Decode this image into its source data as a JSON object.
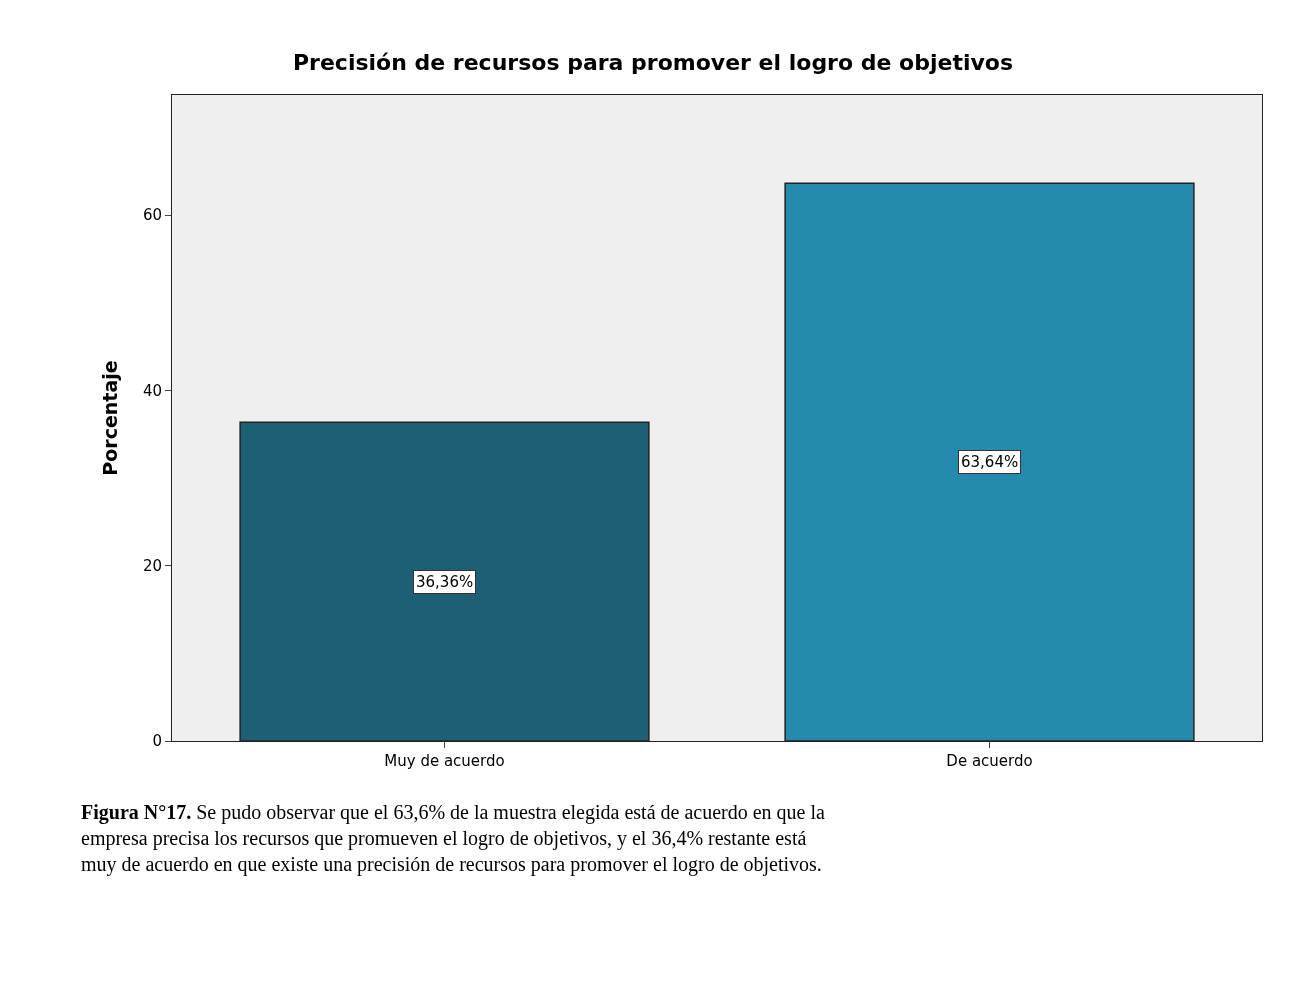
{
  "chart_data": {
    "type": "bar",
    "title": "Precisión de recursos para promover el logro de objetivos",
    "ylabel": "Porcentaje",
    "categories": [
      "Muy de acuerdo",
      "De acuerdo"
    ],
    "values": [
      36.36,
      63.64
    ],
    "colors": [
      "#1d5f75",
      "#258aad"
    ],
    "value_labels": [
      "36,36%",
      "63,64%"
    ],
    "ylim": [
      0,
      73.7
    ],
    "yticks": [
      0,
      20,
      40,
      60
    ],
    "grid": false,
    "annotations": [
      "Figura N°17. Se pudo observar que el 63,6% de la muestra elegida está de acuerdo en que la empresa precisa los recursos que promueven el logro de objetivos, y el 36,4% restante está muy de acuerdo en que existe una precisión de recursos para promover el logro de objetivos."
    ]
  }
}
